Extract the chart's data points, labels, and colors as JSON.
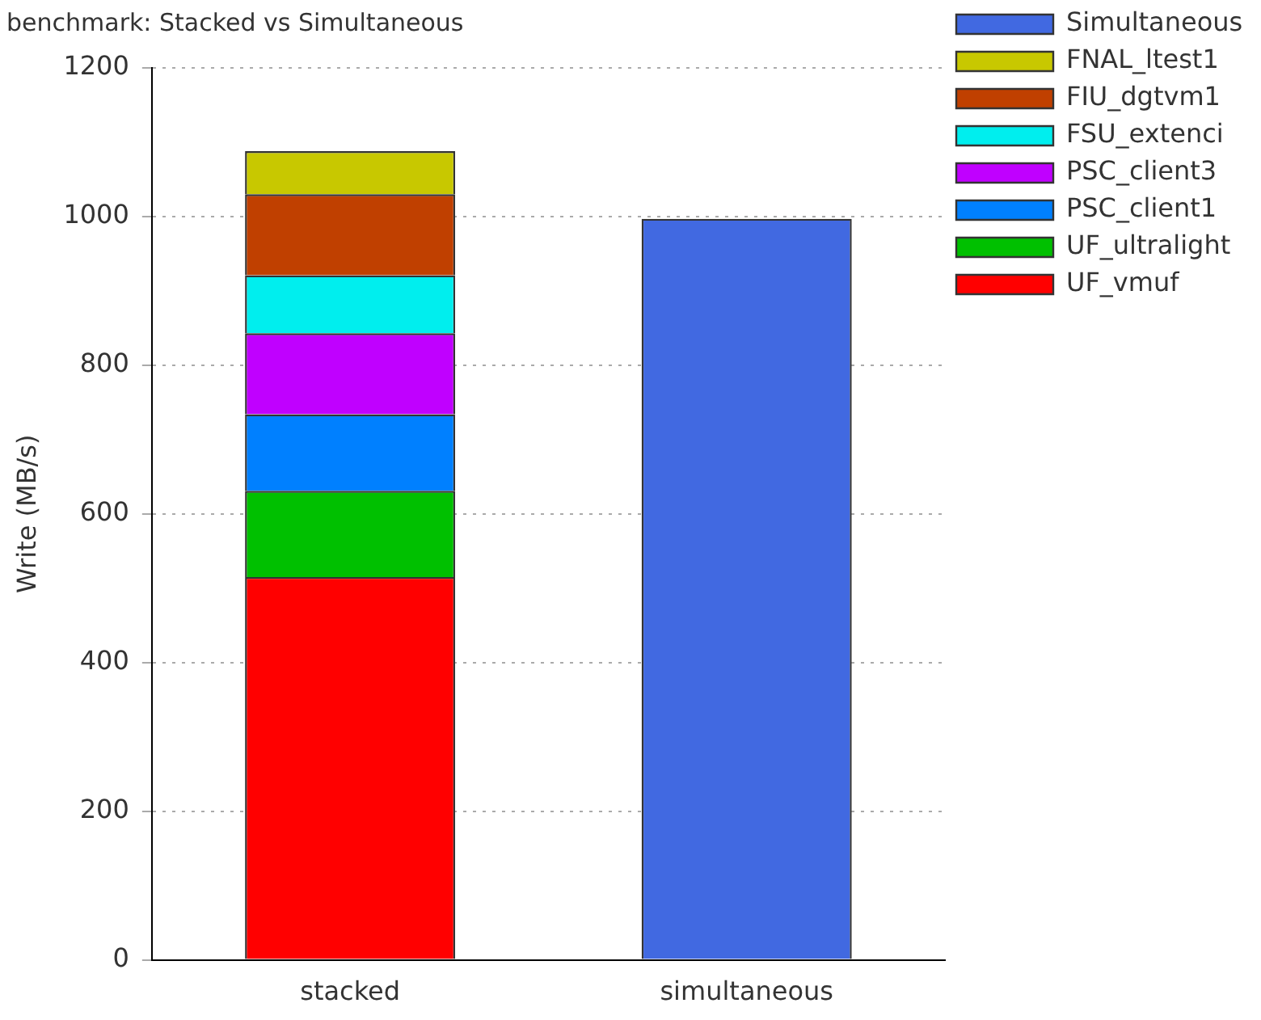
{
  "chart_data": {
    "type": "bar",
    "title": "benchmark: Stacked vs Simultaneous",
    "ylabel": "Write (MB/s)",
    "categories": [
      "stacked",
      "simultaneous"
    ],
    "stacked": true,
    "series": [
      {
        "name": "UF_vmuf",
        "color": "#ff0000",
        "values": [
          515,
          null
        ]
      },
      {
        "name": "UF_ultralight",
        "color": "#00c000",
        "values": [
          116,
          null
        ]
      },
      {
        "name": "PSC_client1",
        "color": "#0080ff",
        "values": [
          103,
          null
        ]
      },
      {
        "name": "PSC_client3",
        "color": "#c000ff",
        "values": [
          109,
          null
        ]
      },
      {
        "name": "FSU_extenci",
        "color": "#00eeee",
        "values": [
          78,
          null
        ]
      },
      {
        "name": "FIU_dgtvm1",
        "color": "#c04000",
        "values": [
          109,
          null
        ]
      },
      {
        "name": "FNAL_ltest1",
        "color": "#c8c800",
        "values": [
          58,
          null
        ]
      },
      {
        "name": "Simultaneous",
        "color": "#4169e1",
        "values": [
          null,
          997
        ]
      }
    ],
    "ylim": [
      0,
      1200
    ],
    "yticks": [
      0,
      200,
      400,
      600,
      800,
      1000,
      1200
    ],
    "grid": "y",
    "legend": "top right"
  }
}
